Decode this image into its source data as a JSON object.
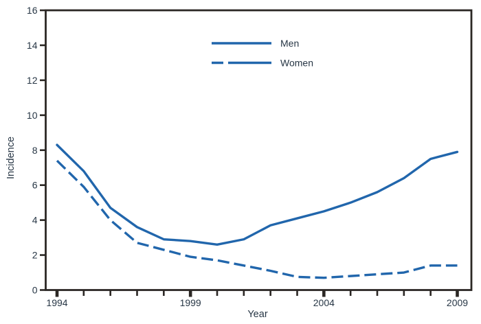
{
  "chart_data": {
    "type": "line",
    "title": "",
    "xlabel": "Year",
    "ylabel": "Incidence",
    "x": [
      1994,
      1995,
      1996,
      1997,
      1998,
      1999,
      2000,
      2001,
      2002,
      2003,
      2004,
      2005,
      2006,
      2007,
      2008,
      2009
    ],
    "x_tick_labels": [
      1994,
      1999,
      2004,
      2009
    ],
    "y_ticks": [
      0,
      2,
      4,
      6,
      8,
      10,
      12,
      14,
      16
    ],
    "xlim": [
      1994,
      2009
    ],
    "ylim": [
      0,
      16
    ],
    "grid": false,
    "legend_position": "upper-center",
    "series": [
      {
        "name": "Men",
        "style": "solid",
        "values": [
          8.3,
          6.8,
          4.7,
          3.6,
          2.9,
          2.8,
          2.6,
          2.9,
          3.7,
          4.1,
          4.5,
          5.0,
          5.6,
          6.4,
          7.5,
          7.9
        ]
      },
      {
        "name": "Women",
        "style": "dashed",
        "values": [
          7.4,
          5.9,
          4.0,
          2.7,
          2.3,
          1.9,
          1.7,
          1.4,
          1.1,
          0.75,
          0.7,
          0.8,
          0.9,
          1.0,
          1.4,
          1.4
        ]
      }
    ]
  },
  "colors": {
    "line": "#2166ac",
    "frame": "#2b2724",
    "text": "#273645",
    "background": "#ffffff"
  }
}
